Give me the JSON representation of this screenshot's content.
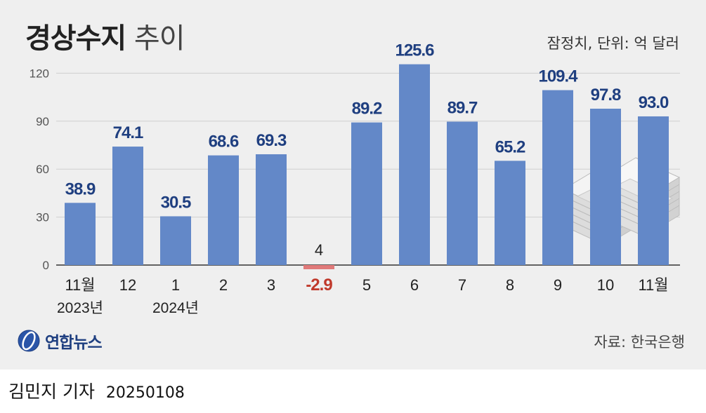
{
  "header": {
    "title_bold": "경상수지",
    "title_light": "추이",
    "note": "잠정치, 단위: 억 달러"
  },
  "chart_data": {
    "type": "bar",
    "title": "경상수지 추이",
    "unit_note": "잠정치, 단위: 억 달러",
    "categories": [
      "11월",
      "12",
      "1",
      "2",
      "3",
      "4",
      "5",
      "6",
      "7",
      "8",
      "9",
      "10",
      "11월"
    ],
    "year_labels": [
      {
        "category_index": 0,
        "text": "2023년"
      },
      {
        "category_index": 2,
        "text": "2024년"
      }
    ],
    "values": [
      38.9,
      74.1,
      30.5,
      68.6,
      69.3,
      -2.9,
      89.2,
      125.6,
      89.7,
      65.2,
      109.4,
      97.8,
      93.0
    ],
    "value_labels": [
      "38.9",
      "74.1",
      "30.5",
      "68.6",
      "69.3",
      "-2.9",
      "89.2",
      "125.6",
      "89.7",
      "65.2",
      "109.4",
      "97.8",
      "93.0"
    ],
    "yticks": [
      "0",
      "30",
      "60",
      "90",
      "120"
    ],
    "ylim": [
      0,
      130
    ],
    "grid": true,
    "colors": {
      "positive": "#6388c8",
      "negative": "#e07a7a",
      "label": "#1f3f80",
      "negative_label": "#c0392b"
    }
  },
  "logo": {
    "icon": "yonhap-logo-icon",
    "text": "연합뉴스"
  },
  "source": "자료: 한국은행",
  "byline": {
    "reporter": "김민지 기자",
    "date": "20250108"
  },
  "decoration": {
    "icon": "money-stack-icon"
  }
}
